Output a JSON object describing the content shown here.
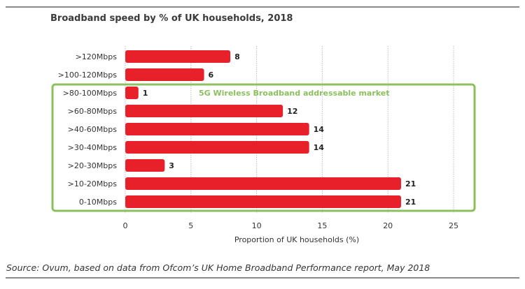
{
  "chart_data": {
    "type": "bar",
    "orientation": "horizontal",
    "title": "Broadband speed by % of UK households, 2018",
    "categories": [
      ">120Mbps",
      ">100-120Mbps",
      ">80-100Mbps",
      ">60-80Mbps",
      ">40-60Mbps",
      ">30-40Mbps",
      ">20-30Mbps",
      ">10-20Mbps",
      "0-10Mbps"
    ],
    "values": [
      8,
      6,
      1,
      12,
      14,
      14,
      3,
      21,
      21
    ],
    "xlabel": "Proportion of UK households  (%)",
    "ylabel": "",
    "xlim": [
      0,
      25
    ],
    "xticks": [
      0,
      5,
      10,
      15,
      20,
      25
    ],
    "grid": "vertical dotted",
    "bar_color": "#e8202a",
    "annotation": {
      "text": "5G Wireless Broadband addressable market",
      "color": "#8cbf5e",
      "highlighted_categories": [
        ">80-100Mbps",
        ">60-80Mbps",
        ">40-60Mbps",
        ">30-40Mbps",
        ">20-30Mbps",
        ">10-20Mbps",
        "0-10Mbps"
      ]
    }
  },
  "source": "Source: Ovum, based on data from Ofcom’s UK Home Broadband Performance report, May 2018"
}
